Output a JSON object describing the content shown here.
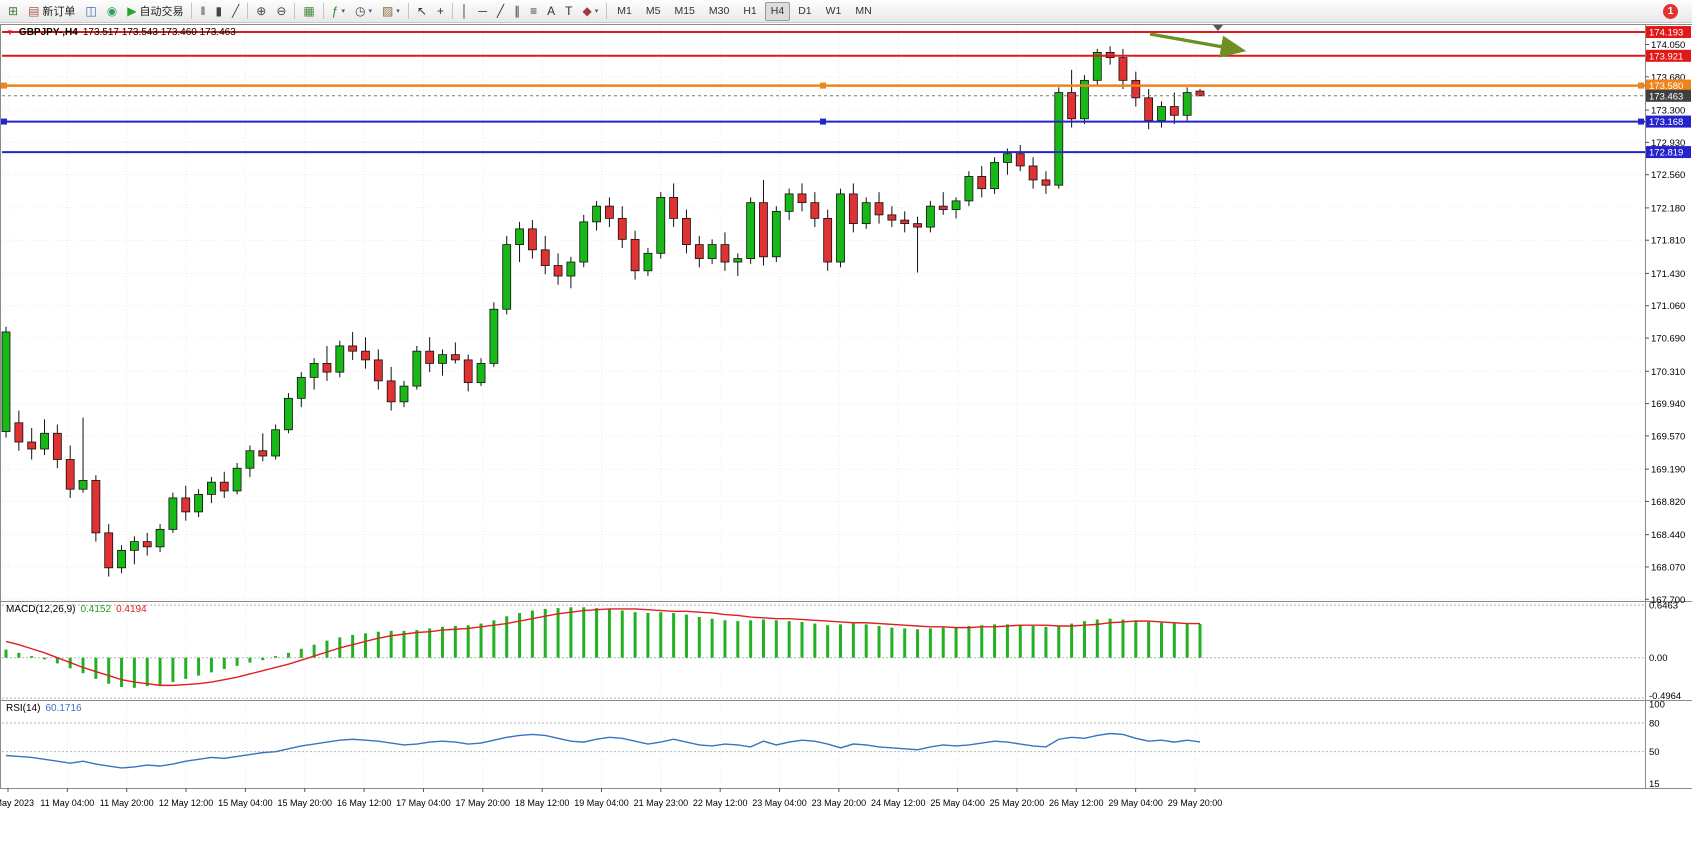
{
  "toolbar": {
    "badge": "1",
    "active_timeframe": "H4",
    "timeframes": [
      "M1",
      "M5",
      "M15",
      "M30",
      "H1",
      "H4",
      "D1",
      "W1",
      "MN"
    ],
    "items": [
      {
        "icon": "new-chart-icon",
        "glyph": "⊞",
        "color": "#3f7d3f",
        "name": "new-chart-button"
      },
      {
        "icon": "new-order-icon",
        "glyph": "▤",
        "color": "#b05050",
        "label": "新订单",
        "name": "new-order-button"
      },
      {
        "icon": "profiles-icon",
        "glyph": "◫",
        "color": "#3a66b0",
        "name": "profiles-button"
      },
      {
        "icon": "community-icon",
        "glyph": "◉",
        "color": "#2f9e62",
        "name": "community-button"
      },
      {
        "icon": "autotrading-icon",
        "glyph": "▶",
        "color": "#28a428",
        "label": "自动交易",
        "name": "autotrading-button"
      },
      {
        "sep": true
      },
      {
        "icon": "ohlc-bars-icon",
        "glyph": "‖",
        "color": "#444",
        "name": "bar-chart-button"
      },
      {
        "icon": "candlestick-icon",
        "glyph": "▮",
        "color": "#444",
        "name": "candlestick-chart-button"
      },
      {
        "icon": "line-chart-icon",
        "glyph": "╱",
        "color": "#444",
        "name": "line-chart-button"
      },
      {
        "sep": true
      },
      {
        "icon": "zoom-in-icon",
        "glyph": "⊕",
        "color": "#444",
        "name": "zoom-in-button"
      },
      {
        "icon": "zoom-out-icon",
        "glyph": "⊖",
        "color": "#444",
        "name": "zoom-out-button"
      },
      {
        "sep": true
      },
      {
        "icon": "tile-windows-icon",
        "glyph": "▦",
        "color": "#3f8a3f",
        "name": "tile-windows-button"
      },
      {
        "sep": true
      },
      {
        "icon": "indicators-icon",
        "glyph": "ƒ",
        "color": "#2e7d32",
        "caret": true,
        "name": "indicators-button"
      },
      {
        "icon": "periods-icon",
        "glyph": "◷",
        "color": "#444",
        "caret": true,
        "name": "periods-button"
      },
      {
        "icon": "templates-icon",
        "glyph": "▨",
        "color": "#8a6d3b",
        "caret": true,
        "name": "templates-button"
      },
      {
        "sep": true
      },
      {
        "icon": "cursor-icon",
        "glyph": "↖",
        "color": "#333",
        "name": "cursor-button"
      },
      {
        "icon": "crosshair-icon",
        "glyph": "+",
        "color": "#333",
        "name": "crosshair-button"
      },
      {
        "sep": true
      },
      {
        "icon": "vertical-line-icon",
        "glyph": "│",
        "color": "#333",
        "name": "vertical-line-button"
      },
      {
        "icon": "horizontal-line-icon",
        "glyph": "─",
        "color": "#333",
        "name": "horizontal-line-button"
      },
      {
        "icon": "trendline-icon",
        "glyph": "╱",
        "color": "#333",
        "name": "trendline-button"
      },
      {
        "icon": "channel-icon",
        "glyph": "∥",
        "color": "#333",
        "name": "channel-button"
      },
      {
        "icon": "fibonacci-icon",
        "glyph": "≡",
        "color": "#333",
        "name": "fibonacci-button"
      },
      {
        "icon": "text-icon",
        "glyph": "A",
        "color": "#333",
        "name": "text-button"
      },
      {
        "icon": "text-label-icon",
        "glyph": "T",
        "color": "#333",
        "name": "text-label-button"
      },
      {
        "icon": "shapes-icon",
        "glyph": "◆",
        "color": "#a23a3a",
        "caret": true,
        "name": "shapes-button"
      },
      {
        "sep": true
      }
    ]
  },
  "chart_header": {
    "symbol_timeframe": "GBPJPY-,H4",
    "ohlc_text": "173.517 173.543 173.460 173.463"
  },
  "chart_data": {
    "type": "candlestick",
    "symbol": "GBPJPY-",
    "timeframe": "H4",
    "title": "GBPJPY-,H4 173.517 173.543 173.460 173.463",
    "price_axis": {
      "visible_range": [
        167.68,
        174.285
      ],
      "ticks": [
        "174.050",
        "173.680",
        "173.300",
        "172.930",
        "172.560",
        "172.180",
        "171.810",
        "171.430",
        "171.060",
        "170.690",
        "170.310",
        "169.940",
        "169.570",
        "169.190",
        "168.820",
        "168.440",
        "168.070",
        "167.700"
      ]
    },
    "time_axis": {
      "labels": [
        "10 May 2023",
        "11 May 04:00",
        "11 May 20:00",
        "12 May 12:00",
        "15 May 04:00",
        "15 May 20:00",
        "16 May 12:00",
        "17 May 04:00",
        "17 May 20:00",
        "18 May 12:00",
        "19 May 04:00",
        "21 May 23:00",
        "22 May 12:00",
        "23 May 04:00",
        "23 May 20:00",
        "24 May 12:00",
        "25 May 04:00",
        "25 May 20:00",
        "26 May 12:00",
        "29 May 04:00",
        "29 May 20:00"
      ]
    },
    "candles": [
      [
        169.62,
        170.82,
        169.55,
        170.76
      ],
      [
        169.72,
        169.86,
        169.4,
        169.5
      ],
      [
        169.5,
        169.66,
        169.3,
        169.42
      ],
      [
        169.42,
        169.76,
        169.35,
        169.6
      ],
      [
        169.6,
        169.7,
        169.2,
        169.3
      ],
      [
        169.3,
        169.46,
        168.86,
        168.96
      ],
      [
        168.96,
        169.78,
        168.92,
        169.06
      ],
      [
        169.06,
        169.12,
        168.36,
        168.46
      ],
      [
        168.46,
        168.56,
        167.96,
        168.06
      ],
      [
        168.06,
        168.32,
        168.0,
        168.26
      ],
      [
        168.26,
        168.42,
        168.1,
        168.36
      ],
      [
        168.36,
        168.46,
        168.2,
        168.3
      ],
      [
        168.3,
        168.56,
        168.24,
        168.5
      ],
      [
        168.5,
        168.92,
        168.46,
        168.86
      ],
      [
        168.86,
        169.0,
        168.6,
        168.7
      ],
      [
        168.7,
        168.96,
        168.64,
        168.9
      ],
      [
        168.9,
        169.1,
        168.8,
        169.04
      ],
      [
        169.04,
        169.16,
        168.86,
        168.94
      ],
      [
        168.94,
        169.26,
        168.9,
        169.2
      ],
      [
        169.2,
        169.46,
        169.1,
        169.4
      ],
      [
        169.4,
        169.6,
        169.28,
        169.34
      ],
      [
        169.34,
        169.7,
        169.3,
        169.64
      ],
      [
        169.64,
        170.06,
        169.6,
        170.0
      ],
      [
        170.0,
        170.3,
        169.9,
        170.24
      ],
      [
        170.24,
        170.46,
        170.1,
        170.4
      ],
      [
        170.4,
        170.6,
        170.2,
        170.3
      ],
      [
        170.3,
        170.66,
        170.24,
        170.6
      ],
      [
        170.6,
        170.76,
        170.44,
        170.54
      ],
      [
        170.54,
        170.7,
        170.34,
        170.44
      ],
      [
        170.44,
        170.56,
        170.1,
        170.2
      ],
      [
        170.2,
        170.36,
        169.86,
        169.96
      ],
      [
        169.96,
        170.2,
        169.9,
        170.14
      ],
      [
        170.14,
        170.6,
        170.1,
        170.54
      ],
      [
        170.54,
        170.7,
        170.3,
        170.4
      ],
      [
        170.4,
        170.56,
        170.26,
        170.5
      ],
      [
        170.5,
        170.64,
        170.4,
        170.44
      ],
      [
        170.44,
        170.5,
        170.08,
        170.18
      ],
      [
        170.18,
        170.46,
        170.14,
        170.4
      ],
      [
        170.4,
        171.1,
        170.36,
        171.02
      ],
      [
        171.02,
        171.86,
        170.96,
        171.76
      ],
      [
        171.76,
        172.02,
        171.56,
        171.94
      ],
      [
        171.94,
        172.04,
        171.6,
        171.7
      ],
      [
        171.7,
        171.86,
        171.42,
        171.52
      ],
      [
        171.52,
        171.66,
        171.3,
        171.4
      ],
      [
        171.4,
        171.62,
        171.26,
        171.56
      ],
      [
        171.56,
        172.1,
        171.5,
        172.02
      ],
      [
        172.02,
        172.26,
        171.92,
        172.2
      ],
      [
        172.2,
        172.3,
        171.96,
        172.06
      ],
      [
        172.06,
        172.2,
        171.72,
        171.82
      ],
      [
        171.82,
        171.92,
        171.36,
        171.46
      ],
      [
        171.46,
        171.72,
        171.4,
        171.66
      ],
      [
        171.66,
        172.36,
        171.6,
        172.3
      ],
      [
        172.3,
        172.46,
        171.96,
        172.06
      ],
      [
        172.06,
        172.16,
        171.66,
        171.76
      ],
      [
        171.76,
        171.86,
        171.5,
        171.6
      ],
      [
        171.6,
        171.82,
        171.54,
        171.76
      ],
      [
        171.76,
        171.9,
        171.46,
        171.56
      ],
      [
        171.56,
        171.66,
        171.4,
        171.6
      ],
      [
        171.6,
        172.3,
        171.54,
        172.24
      ],
      [
        172.24,
        172.5,
        171.52,
        171.62
      ],
      [
        171.62,
        172.2,
        171.56,
        172.14
      ],
      [
        172.14,
        172.4,
        172.04,
        172.34
      ],
      [
        172.34,
        172.46,
        172.14,
        172.24
      ],
      [
        172.24,
        172.36,
        171.96,
        172.06
      ],
      [
        172.06,
        172.16,
        171.46,
        171.56
      ],
      [
        171.56,
        172.4,
        171.5,
        172.34
      ],
      [
        172.34,
        172.46,
        171.9,
        172.0
      ],
      [
        172.0,
        172.3,
        171.94,
        172.24
      ],
      [
        172.24,
        172.36,
        172.0,
        172.1
      ],
      [
        172.1,
        172.2,
        171.96,
        172.04
      ],
      [
        172.04,
        172.14,
        171.9,
        172.0
      ],
      [
        172.0,
        172.08,
        171.44,
        171.96
      ],
      [
        171.96,
        172.26,
        171.9,
        172.2
      ],
      [
        172.2,
        172.36,
        172.1,
        172.16
      ],
      [
        172.16,
        172.3,
        172.06,
        172.26
      ],
      [
        172.26,
        172.6,
        172.2,
        172.54
      ],
      [
        172.54,
        172.66,
        172.3,
        172.4
      ],
      [
        172.4,
        172.76,
        172.34,
        172.7
      ],
      [
        172.7,
        172.86,
        172.56,
        172.8
      ],
      [
        172.8,
        172.9,
        172.6,
        172.66
      ],
      [
        172.66,
        172.76,
        172.4,
        172.5
      ],
      [
        172.5,
        172.6,
        172.34,
        172.44
      ],
      [
        172.44,
        173.56,
        172.4,
        173.5
      ],
      [
        173.5,
        173.76,
        173.1,
        173.2
      ],
      [
        173.2,
        173.7,
        173.14,
        173.64
      ],
      [
        173.64,
        174.0,
        173.58,
        173.96
      ],
      [
        173.96,
        174.03,
        173.82,
        173.9
      ],
      [
        173.9,
        174.0,
        173.54,
        173.64
      ],
      [
        173.64,
        173.74,
        173.34,
        173.44
      ],
      [
        173.44,
        173.54,
        173.08,
        173.18
      ],
      [
        173.18,
        173.4,
        173.1,
        173.34
      ],
      [
        173.34,
        173.5,
        173.14,
        173.24
      ],
      [
        173.24,
        173.56,
        173.18,
        173.5
      ],
      [
        173.517,
        173.543,
        173.46,
        173.463
      ]
    ],
    "overlays": {
      "hlines": [
        {
          "price": 174.193,
          "label": "174.193",
          "color": "#e01818",
          "width": 2,
          "name": "resistance-line-174193"
        },
        {
          "price": 173.921,
          "label": "173.921",
          "color": "#e01818",
          "width": 2,
          "name": "resistance-line-173921"
        },
        {
          "price": 173.58,
          "label": "173.580",
          "color": "#ef8418",
          "width": 2.5,
          "handles": true,
          "name": "orange-line-173580"
        },
        {
          "price": 173.168,
          "label": "173.168",
          "color": "#2424cc",
          "width": 2,
          "handles": true,
          "name": "support-line-173168"
        },
        {
          "price": 172.819,
          "label": "172.819",
          "color": "#2424cc",
          "width": 2,
          "name": "support-line-172819"
        }
      ],
      "current_price": {
        "price": 173.463,
        "label": "173.463",
        "label_bg": "#404040"
      },
      "arrow": {
        "color": "#6d8f23"
      }
    },
    "macd": {
      "label": "MACD(12,26,9)",
      "value_main": "0.4152",
      "value_signal": "0.4194",
      "scale_labels": [
        "0.6463",
        "0.00",
        "-0.4964"
      ],
      "scale_values": [
        0.6463,
        0,
        -0.4964
      ],
      "hist_color": "#22b122",
      "signal_color": "#e02020",
      "histogram": [
        0.1,
        0.06,
        0.02,
        -0.02,
        -0.07,
        -0.13,
        -0.19,
        -0.26,
        -0.32,
        -0.36,
        -0.37,
        -0.35,
        -0.33,
        -0.3,
        -0.26,
        -0.22,
        -0.18,
        -0.14,
        -0.1,
        -0.06,
        -0.03,
        0.02,
        0.06,
        0.11,
        0.16,
        0.21,
        0.25,
        0.28,
        0.3,
        0.32,
        0.33,
        0.33,
        0.34,
        0.36,
        0.38,
        0.39,
        0.4,
        0.42,
        0.46,
        0.51,
        0.55,
        0.58,
        0.6,
        0.61,
        0.62,
        0.62,
        0.61,
        0.6,
        0.58,
        0.56,
        0.55,
        0.56,
        0.55,
        0.53,
        0.5,
        0.48,
        0.46,
        0.45,
        0.46,
        0.47,
        0.46,
        0.45,
        0.44,
        0.42,
        0.4,
        0.41,
        0.42,
        0.41,
        0.39,
        0.37,
        0.36,
        0.35,
        0.36,
        0.37,
        0.38,
        0.39,
        0.4,
        0.41,
        0.41,
        0.4,
        0.39,
        0.38,
        0.39,
        0.42,
        0.45,
        0.47,
        0.48,
        0.47,
        0.46,
        0.44,
        0.43,
        0.42,
        0.42,
        0.4152
      ],
      "signal": [
        0.2,
        0.16,
        0.11,
        0.06,
        0.0,
        -0.06,
        -0.12,
        -0.17,
        -0.22,
        -0.27,
        -0.3,
        -0.32,
        -0.34,
        -0.34,
        -0.33,
        -0.32,
        -0.3,
        -0.27,
        -0.24,
        -0.2,
        -0.16,
        -0.12,
        -0.08,
        -0.03,
        0.02,
        0.07,
        0.12,
        0.16,
        0.2,
        0.24,
        0.27,
        0.29,
        0.31,
        0.32,
        0.34,
        0.35,
        0.36,
        0.38,
        0.4,
        0.42,
        0.45,
        0.48,
        0.51,
        0.54,
        0.56,
        0.58,
        0.59,
        0.6,
        0.6,
        0.6,
        0.59,
        0.58,
        0.57,
        0.57,
        0.56,
        0.55,
        0.53,
        0.52,
        0.5,
        0.49,
        0.48,
        0.48,
        0.47,
        0.46,
        0.45,
        0.44,
        0.43,
        0.43,
        0.42,
        0.41,
        0.4,
        0.39,
        0.38,
        0.38,
        0.37,
        0.37,
        0.38,
        0.38,
        0.39,
        0.4,
        0.4,
        0.4,
        0.39,
        0.39,
        0.4,
        0.41,
        0.43,
        0.44,
        0.45,
        0.45,
        0.44,
        0.43,
        0.42,
        0.4194
      ]
    },
    "rsi": {
      "label": "RSI(14)",
      "value": "60.1716",
      "color": "#3a73c2",
      "levels": [
        80,
        50
      ],
      "scale_labels": [
        {
          "v": 100,
          "t": "100"
        },
        {
          "v": 80,
          "t": "80"
        },
        {
          "v": 50,
          "t": "50"
        },
        {
          "v": 15,
          "t": "15"
        }
      ],
      "values": [
        46,
        45,
        44,
        42,
        40,
        38,
        40,
        37,
        35,
        33,
        34,
        36,
        35,
        37,
        40,
        42,
        44,
        43,
        45,
        47,
        49,
        50,
        53,
        56,
        58,
        60,
        62,
        63,
        62,
        61,
        59,
        57,
        58,
        60,
        61,
        60,
        58,
        59,
        62,
        65,
        67,
        68,
        67,
        64,
        61,
        60,
        63,
        65,
        64,
        61,
        58,
        60,
        63,
        60,
        57,
        56,
        58,
        57,
        55,
        61,
        57,
        60,
        62,
        61,
        58,
        54,
        58,
        57,
        55,
        54,
        53,
        52,
        55,
        57,
        56,
        57,
        59,
        61,
        60,
        58,
        56,
        55,
        63,
        65,
        64,
        67,
        69,
        68,
        64,
        61,
        62,
        60,
        62,
        60.17
      ]
    },
    "colors": {
      "up": "#18b818",
      "down": "#e03232",
      "wick": "#111111",
      "grid": "#ececec",
      "bg": "#ffffff"
    }
  }
}
